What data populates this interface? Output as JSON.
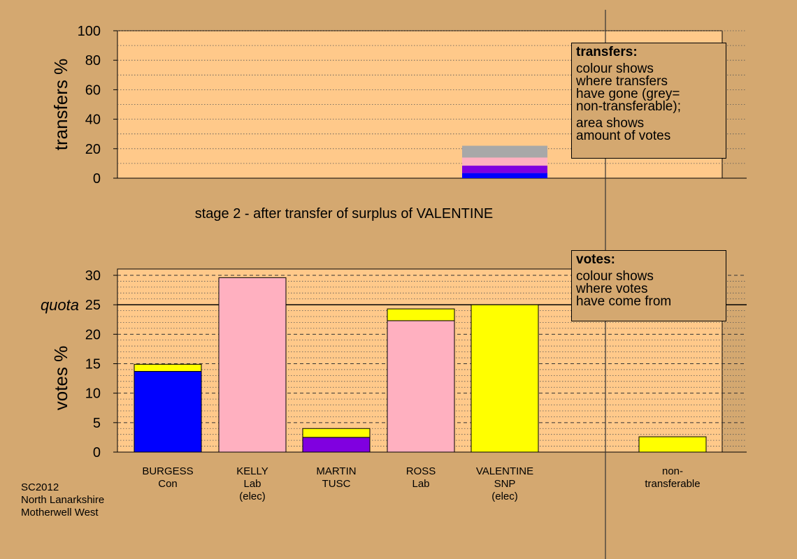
{
  "stage_caption": "stage 2 - after transfer of surplus of VALENTINE",
  "credit_lines": [
    "SC2012",
    "North Lanarkshire",
    "Motherwell West"
  ],
  "colors": {
    "page_bg": "#d4a870",
    "plot_bg": "#ffc98a",
    "Con": "#0000ff",
    "Lab": "#ffb0c0",
    "TUSC": "#8000e0",
    "SNP": "#ffff00",
    "non_transferable": "#a8a8a8"
  },
  "transfers_legend": {
    "title": "transfers:",
    "paragraphs": [
      [
        "colour shows",
        "where transfers",
        "have gone (grey=",
        "non-transferable);"
      ],
      [
        "area shows",
        "amount of votes"
      ]
    ]
  },
  "votes_legend": {
    "title": "votes:",
    "paragraphs": [
      [
        "colour shows",
        "where votes",
        "have come from"
      ]
    ]
  },
  "chart_data": [
    {
      "type": "bar",
      "title": "",
      "xlabel": "",
      "ylabel": "transfers %",
      "ylim": [
        0,
        100
      ],
      "yticks": [
        0,
        20,
        40,
        60,
        80,
        100
      ],
      "grid": "dotted horizontal",
      "bar": {
        "category": "VALENTINE",
        "segments": [
          {
            "party": "Con",
            "value": 3.5
          },
          {
            "party": "TUSC",
            "value": 5.0
          },
          {
            "party": "Lab",
            "value": 5.5
          },
          {
            "party": "non-transferable",
            "value": 8.0
          }
        ]
      }
    },
    {
      "type": "bar",
      "title": "",
      "xlabel": "",
      "ylabel": "votes %",
      "ylim": [
        0,
        31
      ],
      "yticks": [
        0,
        5,
        10,
        15,
        20,
        25,
        30
      ],
      "quota": {
        "label": "quota",
        "value": 25
      },
      "grid": "dashed and dotted horizontal",
      "categories": [
        {
          "lines": [
            "BURGESS",
            "Con"
          ],
          "segments": [
            {
              "party": "Con",
              "value": 13.7
            },
            {
              "party": "SNP",
              "value": 1.2
            }
          ]
        },
        {
          "lines": [
            "KELLY",
            "Lab",
            "(elec)"
          ],
          "segments": [
            {
              "party": "Lab",
              "value": 29.6
            }
          ]
        },
        {
          "lines": [
            "MARTIN",
            "TUSC"
          ],
          "segments": [
            {
              "party": "TUSC",
              "value": 2.5
            },
            {
              "party": "SNP",
              "value": 1.5
            }
          ]
        },
        {
          "lines": [
            "ROSS",
            "Lab"
          ],
          "segments": [
            {
              "party": "Lab",
              "value": 22.3
            },
            {
              "party": "SNP",
              "value": 2.0
            }
          ]
        },
        {
          "lines": [
            "VALENTINE",
            "SNP",
            "(elec)"
          ],
          "segments": [
            {
              "party": "SNP",
              "value": 25.0
            }
          ]
        },
        {
          "lines": [
            "non-",
            "transferable"
          ],
          "segments": [
            {
              "party": "SNP",
              "value": 2.6
            }
          ]
        }
      ]
    }
  ]
}
